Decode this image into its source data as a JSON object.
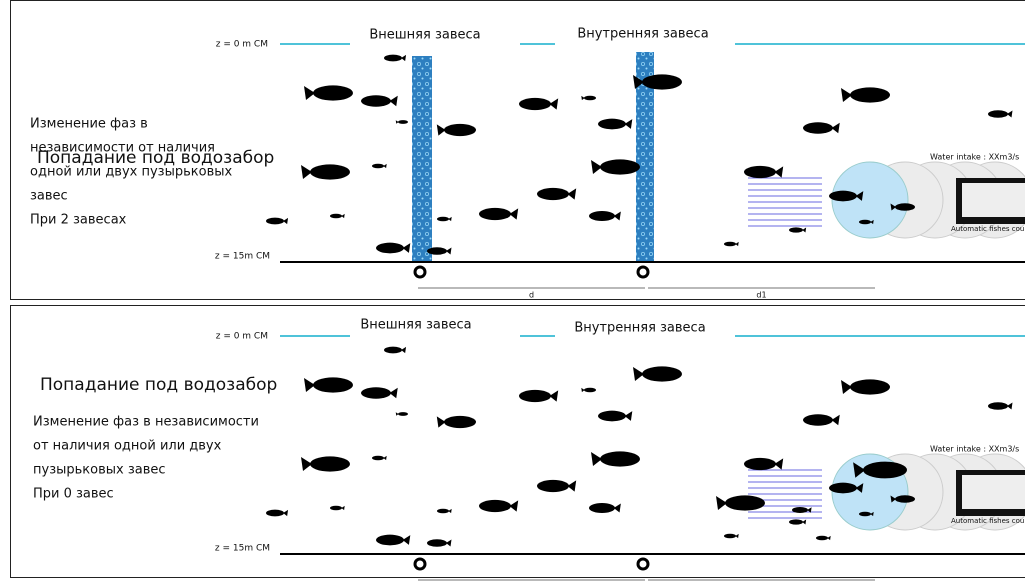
{
  "panels": [
    {
      "surface_label": "z = 0 m CM",
      "bottom_label": "z = 15m CM",
      "outer_curtain": "Внешняя завеса",
      "inner_curtain": "Внутренняя завеса",
      "heading": "Попадание под водозабор",
      "description": [
        "Изменение фаз в",
        "независимости от наличия",
        "одной или двух пузырьковых",
        "завес",
        "При 2 завесах"
      ],
      "distance_1": "d",
      "distance_2": "d1",
      "intake_label": "Water intake : XXm3/s",
      "counter_label": "Automatic fishes counter"
    },
    {
      "surface_label": "z = 0 m CM",
      "bottom_label": "z = 15m CM",
      "outer_curtain": "Внешняя завеса",
      "inner_curtain": "Внутренняя завеса",
      "heading": "Попадание под водозабор",
      "description": [
        "Изменение фаз в независимости",
        "от наличия одной или двух",
        "пузырьковых завес",
        "При 0 завес"
      ],
      "intake_label": "Water intake : XXm3/s",
      "counter_label": "Automatic fishes counter"
    }
  ]
}
